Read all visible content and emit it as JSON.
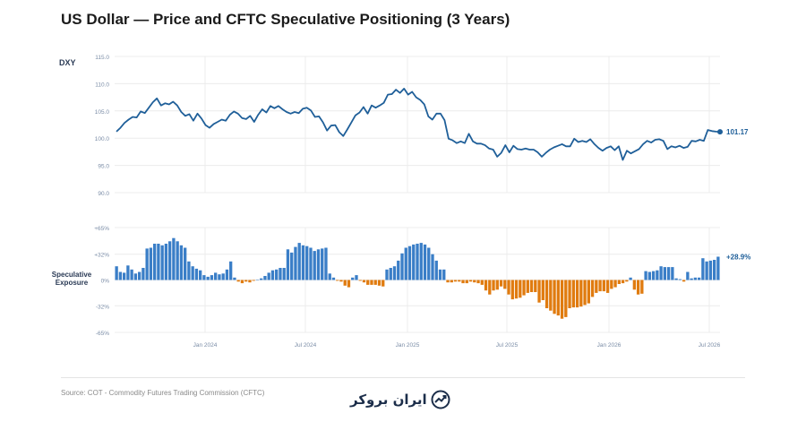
{
  "title": "US Dollar — Price and CFTC Speculative Positioning (3 Years)",
  "source": "Source: COT - Commodity Futures Trading Commission (CFTC)",
  "logo_text": "ایران بروکر",
  "colors": {
    "price_line": "#1f5f99",
    "positive_bar": "#3a7ec7",
    "negative_bar": "#e07b0f",
    "grid": "#ececec",
    "axis_text": "#7a8ca6"
  },
  "chart_data": [
    {
      "type": "line",
      "ylabel": "DXY",
      "ylim": [
        90,
        115
      ],
      "yticks": [
        "115.0",
        "110.0",
        "105.0",
        "100.0",
        "95.0",
        "90.0"
      ],
      "last_value_label": "101.17",
      "series": [
        {
          "values": [
            101.2,
            101.9,
            102.8,
            103.4,
            103.9,
            103.8,
            104.9,
            104.6,
            105.6,
            106.6,
            107.3,
            106.0,
            106.4,
            106.2,
            106.7,
            106.0,
            104.8,
            104.1,
            104.4,
            103.2,
            104.5,
            103.6,
            102.4,
            101.9,
            102.6,
            103.0,
            103.4,
            103.2,
            104.3,
            104.9,
            104.5,
            103.7,
            103.5,
            104.1,
            103.0,
            104.3,
            105.3,
            104.7,
            105.9,
            105.5,
            105.9,
            105.3,
            104.8,
            104.5,
            104.8,
            104.6,
            105.4,
            105.6,
            105.1,
            103.9,
            104.0,
            102.9,
            101.4,
            102.3,
            102.4,
            101.1,
            100.4,
            101.6,
            102.9,
            104.2,
            104.7,
            105.7,
            104.5,
            106.0,
            105.6,
            106.0,
            106.5,
            108.0,
            108.1,
            108.9,
            108.3,
            109.1,
            108.0,
            108.5,
            107.5,
            107.0,
            106.2,
            104.0,
            103.4,
            104.5,
            104.5,
            103.3,
            99.9,
            99.6,
            99.1,
            99.4,
            99.1,
            100.8,
            99.4,
            99.0,
            99.0,
            98.7,
            98.1,
            97.9,
            96.6,
            97.3,
            98.7,
            97.4,
            98.6,
            98.0,
            97.9,
            98.1,
            97.9,
            97.9,
            97.4,
            96.6,
            97.3,
            97.9,
            98.3,
            98.6,
            98.9,
            98.5,
            98.5,
            99.9,
            99.3,
            99.5,
            99.3,
            99.8,
            98.9,
            98.2,
            97.7,
            98.2,
            98.5,
            97.8,
            98.5,
            96.0,
            97.7,
            97.2,
            97.6,
            98.0,
            98.9,
            99.5,
            99.2,
            99.7,
            99.8,
            99.5,
            98.0,
            98.5,
            98.3,
            98.6,
            98.2,
            98.4,
            99.5,
            99.4,
            99.7,
            99.5,
            101.5,
            101.3,
            101.2,
            101.17
          ]
        }
      ]
    },
    {
      "type": "bar",
      "ylabel": "Speculative Exposure",
      "ylim": [
        -65,
        65
      ],
      "yticks": [
        "+65%",
        "+32%",
        "0%",
        "-32%",
        "-65%"
      ],
      "last_value_label": "+28.9%",
      "x_tick_labels": [
        "Jan 2024",
        "Jul 2024",
        "Jan 2025",
        "Jul 2025",
        "Jan 2026",
        "Jul 2026"
      ],
      "series": [
        {
          "values": [
            17,
            10,
            9,
            18,
            13,
            8,
            10,
            15,
            39,
            40,
            45,
            45,
            43,
            45,
            48,
            52,
            48,
            43,
            40,
            23,
            17,
            14,
            12,
            6,
            4,
            6,
            9,
            7,
            8,
            13,
            23,
            3,
            -2,
            -4,
            -2,
            -3,
            -1,
            0,
            2,
            5,
            9,
            12,
            13,
            15,
            15,
            38,
            34,
            41,
            46,
            43,
            42,
            40,
            36,
            38,
            39,
            40,
            8,
            3,
            -1,
            -2,
            -7,
            -9,
            3,
            6,
            -1,
            -3,
            -6,
            -6,
            -6,
            -7,
            -8,
            13,
            15,
            17,
            24,
            33,
            40,
            42,
            44,
            45,
            46,
            44,
            40,
            32,
            24,
            13,
            13,
            -3,
            -3,
            -2,
            -2,
            -4,
            -4,
            -2,
            -3,
            -4,
            -6,
            -13,
            -18,
            -13,
            -12,
            -8,
            -11,
            -18,
            -24,
            -23,
            -22,
            -19,
            -16,
            -15,
            -15,
            -28,
            -25,
            -35,
            -38,
            -42,
            -44,
            -48,
            -46,
            -35,
            -34,
            -34,
            -33,
            -31,
            -29,
            -21,
            -16,
            -14,
            -14,
            -16,
            -11,
            -9,
            -5,
            -4,
            -2,
            3,
            -12,
            -18,
            -17,
            11,
            10,
            11,
            12,
            17,
            16,
            16,
            16,
            2,
            1,
            -2,
            10,
            2,
            3,
            3,
            27,
            23,
            24,
            25,
            28.9
          ]
        }
      ]
    }
  ]
}
